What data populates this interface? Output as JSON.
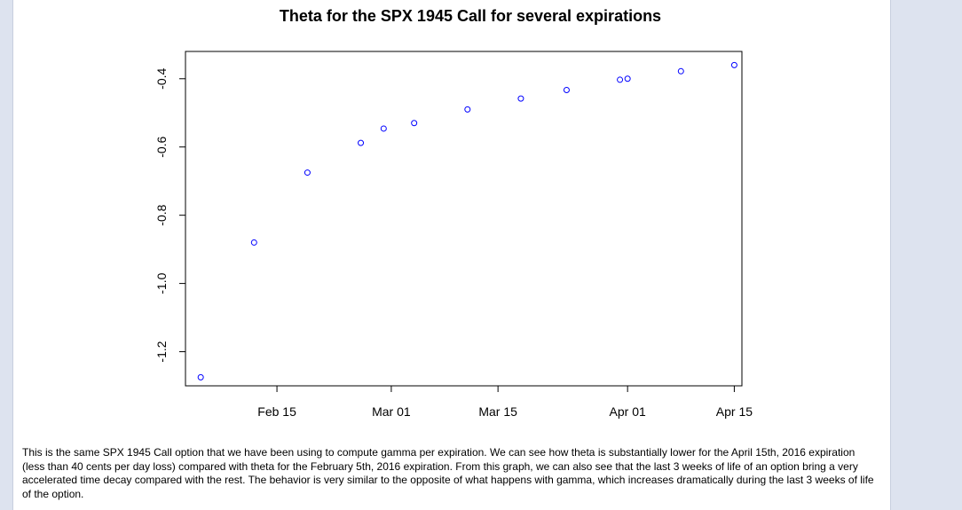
{
  "chart_data": {
    "type": "scatter",
    "title": "Theta for the SPX 1945 Call for several expirations",
    "xlabel": "",
    "ylabel": "",
    "x_ticks": [
      "Feb 15",
      "Mar 01",
      "Mar 15",
      "Apr 01",
      "Apr 15"
    ],
    "y_ticks": [
      "-1.2",
      "-1.0",
      "-0.8",
      "-0.6",
      "-0.4"
    ],
    "ylim": [
      -1.3,
      -0.32
    ],
    "xlim": [
      "2016-02-03",
      "2016-04-16"
    ],
    "grid": false,
    "point_color": "#0000ff",
    "points": [
      {
        "x": "2016-02-05",
        "y": -1.275
      },
      {
        "x": "2016-02-12",
        "y": -0.88
      },
      {
        "x": "2016-02-19",
        "y": -0.675
      },
      {
        "x": "2016-02-26",
        "y": -0.588
      },
      {
        "x": "2016-02-29",
        "y": -0.546
      },
      {
        "x": "2016-03-04",
        "y": -0.53
      },
      {
        "x": "2016-03-11",
        "y": -0.49
      },
      {
        "x": "2016-03-18",
        "y": -0.458
      },
      {
        "x": "2016-03-24",
        "y": -0.433
      },
      {
        "x": "2016-03-31",
        "y": -0.403
      },
      {
        "x": "2016-04-01",
        "y": -0.4
      },
      {
        "x": "2016-04-08",
        "y": -0.378
      },
      {
        "x": "2016-04-15",
        "y": -0.36
      }
    ]
  },
  "caption": "This is the same SPX 1945 Call option that we have been using to compute gamma per expiration. We can see how theta is substantially lower for the April 15th, 2016 expiration (less than 40 cents per day loss) compared with theta for the February 5th, 2016 expiration. From this graph, we can also see that the last 3 weeks of life of an option bring a very accelerated time decay compared with the rest. The behavior is very similar to the opposite of what happens with gamma, which increases dramatically during the last 3 weeks of life of the option."
}
